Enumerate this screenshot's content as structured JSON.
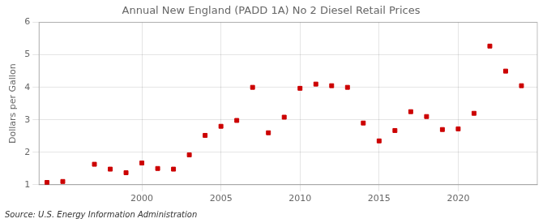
{
  "chart_data": {
    "type": "scatter",
    "title": "Annual New England (PADD 1A) No 2 Diesel Retail Prices",
    "ylabel": "Dollars per Gallon",
    "annotations": [
      "Source: U.S. Energy Information Administration"
    ],
    "x": [
      1994,
      1995,
      1997,
      1998,
      1999,
      2000,
      2001,
      2002,
      2003,
      2004,
      2005,
      2006,
      2007,
      2008,
      2009,
      2010,
      2011,
      2012,
      2013,
      2014,
      2015,
      2016,
      2017,
      2018,
      2019,
      2020,
      2021,
      2022,
      2023,
      2024
    ],
    "values": [
      1.07,
      1.1,
      1.63,
      1.48,
      1.37,
      1.67,
      1.5,
      1.48,
      1.92,
      2.52,
      2.8,
      2.98,
      4.0,
      2.6,
      3.08,
      3.97,
      4.1,
      4.05,
      4.0,
      2.9,
      2.35,
      2.67,
      3.25,
      3.1,
      2.7,
      2.72,
      3.2,
      5.27,
      4.5,
      4.05
    ],
    "color": "#cc0000",
    "marker": "square",
    "xlim": [
      1993.5,
      2025
    ],
    "xticks": [
      2000,
      2005,
      2010,
      2015,
      2020
    ],
    "ylim": [
      1,
      6
    ],
    "yticks": [
      1,
      2,
      3,
      4,
      5,
      6
    ],
    "grid": true
  }
}
